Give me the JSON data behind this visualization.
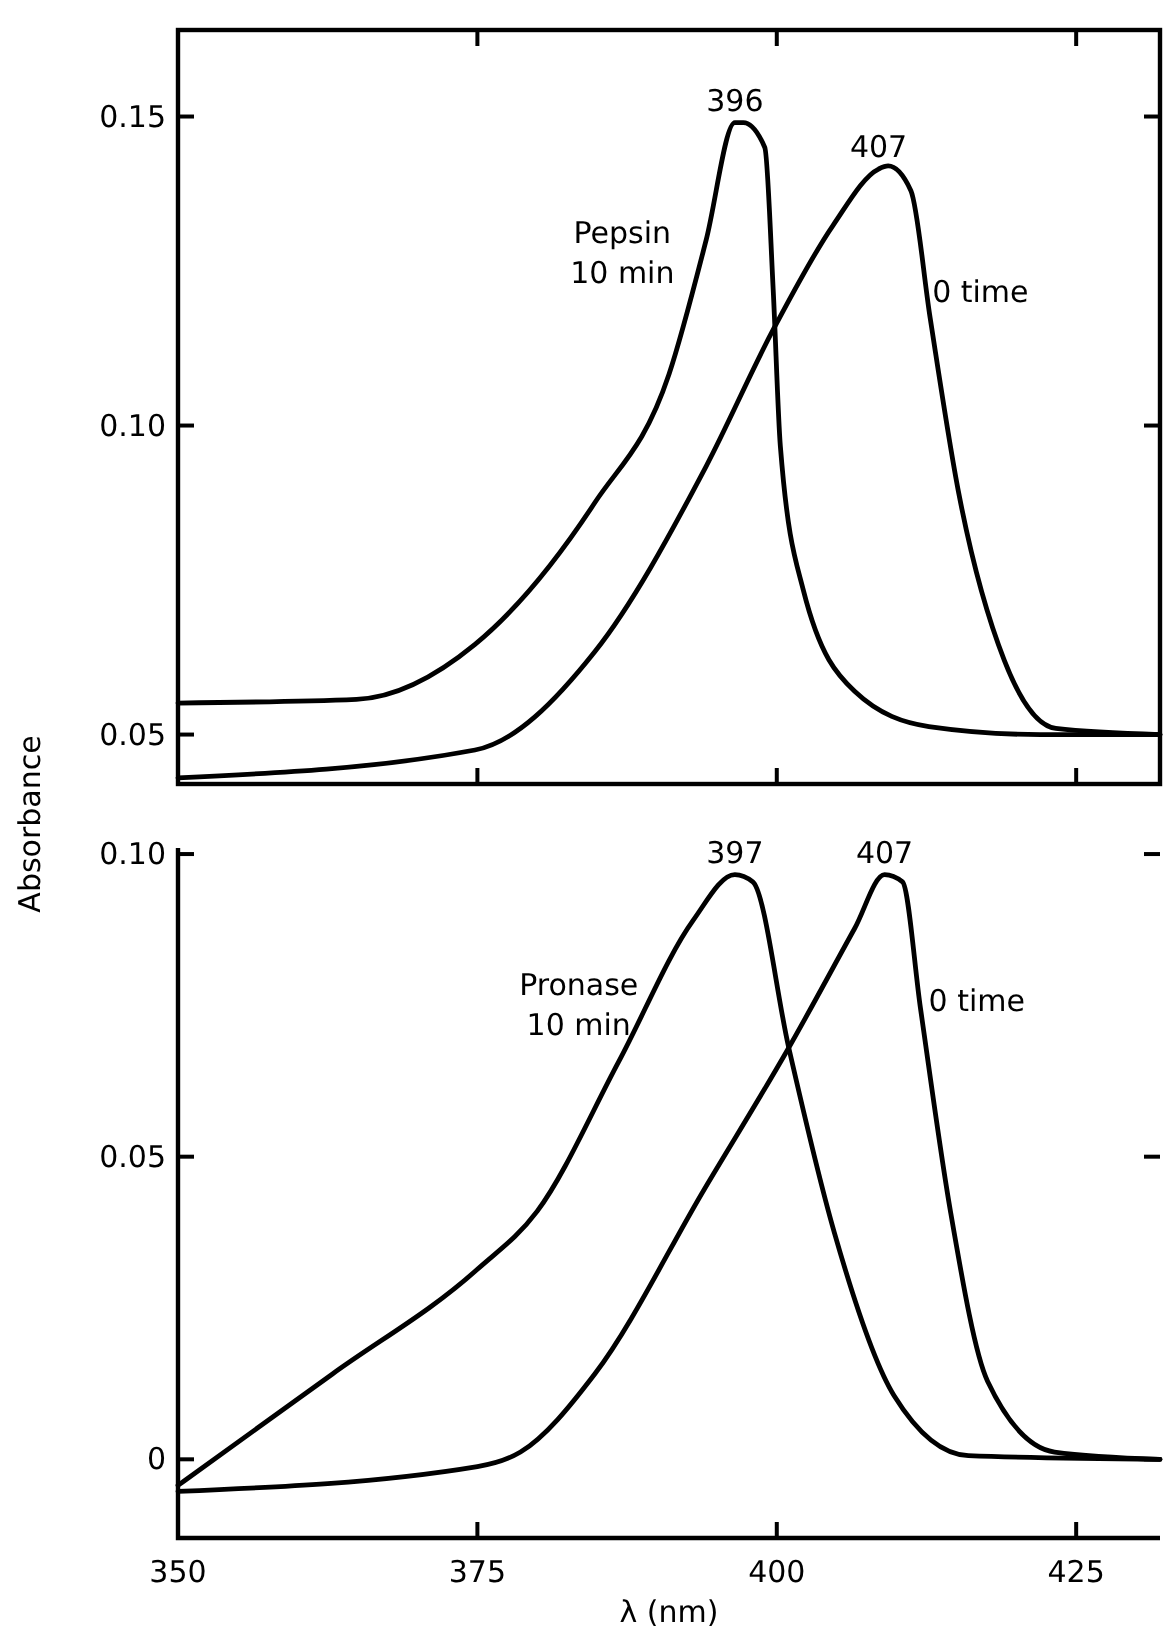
{
  "chart_data": [
    {
      "type": "line",
      "xlim": [
        350,
        432
      ],
      "xticks": [
        {
          "value": 350,
          "label": null
        },
        {
          "value": 375,
          "label": null
        },
        {
          "value": 400,
          "label": null
        },
        {
          "value": 425,
          "label": null
        }
      ],
      "ylim": [
        0.042,
        0.164
      ],
      "yticks": [
        {
          "value": 0.05,
          "label": "0.05"
        },
        {
          "value": 0.1,
          "label": "0.10"
        },
        {
          "value": 0.15,
          "label": "0.15"
        }
      ],
      "tick_labels": "y",
      "series": [
        {
          "name": "Pepsin 10 min",
          "color": "#000000",
          "x": [
            350,
            364.9,
            374.8,
            384.8,
            391,
            394.1,
            396.5,
            397.2,
            399,
            399.7,
            400.3,
            402.2,
            406.5,
            412.7,
            422,
            432
          ],
          "values": [
            0.0551,
            0.0557,
            0.0646,
            0.0875,
            0.1083,
            0.13,
            0.149,
            0.149,
            0.145,
            0.122,
            0.0966,
            0.0735,
            0.057,
            0.0513,
            0.05,
            0.05
          ]
        },
        {
          "name": "0 time",
          "color": "#000000",
          "x": [
            350,
            374.8,
            384.8,
            394.1,
            399.7,
            404.7,
            408.5,
            409.3,
            411.2,
            412.8,
            415.2,
            419,
            423.3,
            432
          ],
          "values": [
            0.043,
            0.0475,
            0.0634,
            0.0934,
            0.1155,
            0.1324,
            0.1415,
            0.142,
            0.138,
            0.1175,
            0.089,
            0.062,
            0.051,
            0.05
          ]
        }
      ],
      "annotations": [
        {
          "text": "396",
          "x": 396.5,
          "y": 0.149
        },
        {
          "text": "407",
          "x": 408.5,
          "y": 0.1415
        }
      ]
    },
    {
      "type": "line",
      "xlim": [
        350,
        432
      ],
      "xticks": [
        350,
        375,
        400,
        425
      ],
      "ylim": [
        -0.013,
        0.101
      ],
      "yticks": [
        {
          "value": 0,
          "label": "0"
        },
        {
          "value": 0.05,
          "label": "0.05"
        },
        {
          "value": 0.1,
          "label": "0.10"
        }
      ],
      "xlabel": "λ (nm)",
      "ylabel": "Absorbance",
      "series": [
        {
          "name": "Pronase 10 min",
          "color": "#000000",
          "x": [
            350,
            362.9,
            375,
            380,
            386.8,
            393,
            396.5,
            398,
            401,
            404.8,
            409.8,
            416,
            432
          ],
          "values": [
            -0.0043,
            0.0141,
            0.0314,
            0.041,
            0.0657,
            0.089,
            0.0966,
            0.0954,
            0.068,
            0.0375,
            0.0105,
            0.0006,
            0
          ]
        },
        {
          "name": "0 time",
          "color": "#000000",
          "x": [
            350,
            375,
            378.6,
            384.8,
            394,
            401,
            406.5,
            409,
            410.5,
            412,
            414.5,
            417.6,
            423.2,
            432
          ],
          "values": [
            -0.0053,
            -0.0012,
            0.0012,
            0.0141,
            0.0448,
            0.068,
            0.0877,
            0.0966,
            0.0954,
            0.0745,
            0.041,
            0.0129,
            0.0012,
            0
          ]
        }
      ],
      "annotations": [
        {
          "text": "397",
          "x": 396.5,
          "y": 0.0966
        },
        {
          "text": "407",
          "x": 409,
          "y": 0.0966
        }
      ]
    }
  ]
}
